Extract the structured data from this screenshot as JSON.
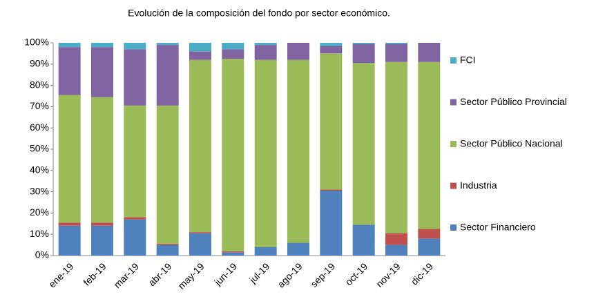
{
  "chart_data": {
    "type": "stacked_bar",
    "title": "Evolución de la composición del fondo por sector económico.",
    "categories": [
      "ene-19",
      "feb-19",
      "mar-19",
      "abr-19",
      "may-19",
      "jun-19",
      "jul-19",
      "ago-19",
      "sep-19",
      "oct-19",
      "nov-19",
      "dic-19"
    ],
    "series": [
      {
        "name": "Sector Financiero",
        "color": "#4f81bd",
        "values": [
          14,
          14,
          17,
          5,
          10.5,
          1.5,
          4,
          6,
          30.5,
          14.5,
          5,
          8
        ]
      },
      {
        "name": "Industria",
        "color": "#c0504d",
        "values": [
          1.5,
          1.5,
          1,
          0.5,
          0.5,
          0.5,
          0,
          0,
          0.5,
          0,
          5.5,
          4.5
        ]
      },
      {
        "name": "Sector Público Nacional",
        "color": "#9bbb59",
        "values": [
          60,
          59,
          52.5,
          65,
          81,
          90.5,
          88,
          86,
          64,
          76,
          80.5,
          78.5
        ]
      },
      {
        "name": "Sector Público Provincial",
        "color": "#8064a2",
        "values": [
          22.5,
          23.5,
          26.5,
          28.5,
          4,
          4.5,
          7,
          8,
          3.5,
          9,
          8.5,
          9
        ]
      },
      {
        "name": "FCI",
        "color": "#4bacc6",
        "values": [
          2,
          2,
          3,
          1,
          4,
          3,
          1,
          0,
          1.5,
          0.5,
          0.5,
          0
        ]
      }
    ],
    "ylim": [
      0,
      100
    ],
    "yticks": [
      {
        "value": 0,
        "label": "0%"
      },
      {
        "value": 10,
        "label": "10%"
      },
      {
        "value": 20,
        "label": "20%"
      },
      {
        "value": 30,
        "label": "30%"
      },
      {
        "value": 40,
        "label": "40%"
      },
      {
        "value": 50,
        "label": "50%"
      },
      {
        "value": 60,
        "label": "60%"
      },
      {
        "value": 70,
        "label": "70%"
      },
      {
        "value": 80,
        "label": "80%"
      },
      {
        "value": 90,
        "label": "90%"
      },
      {
        "value": 100,
        "label": "100%"
      }
    ],
    "legend": "right"
  }
}
